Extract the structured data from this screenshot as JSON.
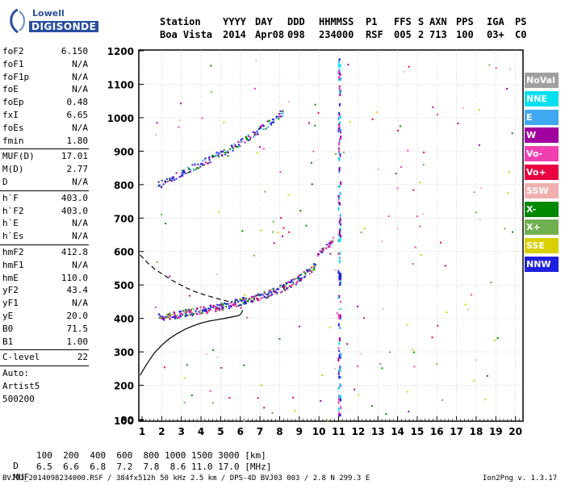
{
  "logo": {
    "line1": "Lowell",
    "line2": "DIGISONDE"
  },
  "header": {
    "labels": [
      "Station",
      "YYYY",
      "DAY",
      "DDD",
      "HHMMSS",
      "P1",
      "FFS",
      "S",
      "AXN",
      "PPS",
      "IGA",
      "PS"
    ],
    "values": [
      "Boa Vista",
      "2014",
      "Apr08",
      "098",
      "234000",
      "RSF",
      "005",
      "2",
      "713",
      "100",
      "03+",
      "C0"
    ]
  },
  "params_group1": [
    {
      "name": "foF2",
      "value": "6.150"
    },
    {
      "name": "foF1",
      "value": "N/A"
    },
    {
      "name": "foF1p",
      "value": "N/A"
    },
    {
      "name": "foE",
      "value": "N/A"
    },
    {
      "name": "foEp",
      "value": "0.48"
    },
    {
      "name": "fxI",
      "value": "6.65"
    },
    {
      "name": "foEs",
      "value": "N/A"
    },
    {
      "name": "fmin",
      "value": "1.80"
    }
  ],
  "params_group2": [
    {
      "name": "MUF(D)",
      "value": "17.01"
    },
    {
      "name": "M(D)",
      "value": "2.77"
    },
    {
      "name": "D",
      "value": "N/A"
    }
  ],
  "params_group3": [
    {
      "name": "h`F",
      "value": "403.0"
    },
    {
      "name": "h`F2",
      "value": "403.0"
    },
    {
      "name": "h`E",
      "value": "N/A"
    },
    {
      "name": "h`Es",
      "value": "N/A"
    }
  ],
  "params_group4": [
    {
      "name": "hmF2",
      "value": "412.8"
    },
    {
      "name": "hmF1",
      "value": "N/A"
    },
    {
      "name": "hmE",
      "value": "110.0"
    },
    {
      "name": "yF2",
      "value": "43.4"
    },
    {
      "name": "yF1",
      "value": "N/A"
    },
    {
      "name": "yE",
      "value": "20.0"
    },
    {
      "name": "B0",
      "value": "71.5"
    },
    {
      "name": "B1",
      "value": "1.00"
    }
  ],
  "clevel": {
    "name": "C-level",
    "value": "22"
  },
  "auto": [
    "Auto:",
    "Artist5",
    "500200"
  ],
  "legend": [
    {
      "label": "NoVal",
      "color": "#a0a0a0"
    },
    {
      "label": "NNE",
      "color": "#00e0f0"
    },
    {
      "label": "E",
      "color": "#40a8f0"
    },
    {
      "label": "W",
      "color": "#a000a0"
    },
    {
      "label": "Vo-",
      "color": "#f040b0"
    },
    {
      "label": "Vo+",
      "color": "#e80040"
    },
    {
      "label": "SSW",
      "color": "#f0b0b0"
    },
    {
      "label": "X-",
      "color": "#008800"
    },
    {
      "label": "X+",
      "color": "#70b050"
    },
    {
      "label": "SSE",
      "color": "#d8d000"
    },
    {
      "label": "NNW",
      "color": "#2020e0"
    }
  ],
  "footer": {
    "d_label": "D",
    "d_values": "100  200  400  600  800 1000 1500 3000 [km]",
    "muf_label": "MUF",
    "muf_values": "6.5  6.6  6.8  7.2  7.8  8.6 11.0 17.0 [MHz]",
    "file_info": "BVJ03_2014098234000.RSF / 384fx512h 50 kHz 2.5 km / DPS-4D BVJ03 003 / 2.8 N 299.3 E",
    "version": "Ion2Png v. 1.3.17"
  },
  "chart_data": {
    "type": "scatter",
    "x_ticks": [
      1,
      2,
      3,
      4,
      5,
      6,
      7,
      8,
      9,
      10,
      11,
      12,
      13,
      14,
      15,
      16,
      17,
      18,
      19,
      20
    ],
    "y_ticks": [
      80,
      100,
      200,
      300,
      400,
      500,
      600,
      700,
      800,
      900,
      1000,
      1100,
      1200
    ],
    "xlim": [
      0.9,
      20.3
    ],
    "ylim": [
      80,
      1200
    ],
    "grid": true,
    "legend_position": "right",
    "f_trace": {
      "x": [
        1.8,
        2.2,
        2.6,
        3.0,
        3.4,
        3.8,
        4.2,
        4.6,
        5.0,
        5.4,
        5.8,
        6.2,
        6.6,
        7.0,
        7.4,
        7.8,
        8.2,
        8.6,
        9.0,
        9.4,
        9.8
      ],
      "y": [
        405,
        408,
        412,
        416,
        420,
        424,
        428,
        433,
        438,
        443,
        449,
        455,
        461,
        468,
        476,
        485,
        496,
        508,
        523,
        540,
        560
      ]
    },
    "f_trace_high": {
      "x": [
        9.9,
        10.1,
        10.3,
        10.5,
        10.7
      ],
      "y": [
        590,
        605,
        615,
        625,
        640
      ]
    },
    "double_hop": {
      "x": [
        1.8,
        2.3,
        2.8,
        3.3,
        3.8,
        4.3,
        4.8,
        5.3,
        5.8,
        6.3,
        6.8,
        7.3,
        7.8,
        8.2
      ],
      "y": [
        800,
        815,
        830,
        845,
        860,
        875,
        890,
        905,
        920,
        940,
        960,
        980,
        1005,
        1020
      ]
    },
    "profile_solid": {
      "x": [
        0.9,
        1.2,
        1.6,
        2.0,
        2.4,
        2.8,
        3.2,
        3.6,
        4.0,
        4.4,
        4.8,
        5.2,
        5.6,
        5.9,
        6.0,
        6.1,
        6.1
      ],
      "y": [
        230,
        260,
        295,
        320,
        340,
        355,
        368,
        378,
        386,
        392,
        396,
        400,
        405,
        408,
        412,
        420,
        425
      ]
    },
    "profile_dashed": {
      "x": [
        0.9,
        1.3,
        1.7,
        2.1,
        2.5,
        2.9,
        3.3,
        3.7,
        4.1,
        4.5,
        4.9,
        5.3,
        5.6
      ],
      "y": [
        590,
        565,
        545,
        530,
        515,
        502,
        490,
        480,
        472,
        465,
        458,
        452,
        448
      ]
    }
  }
}
